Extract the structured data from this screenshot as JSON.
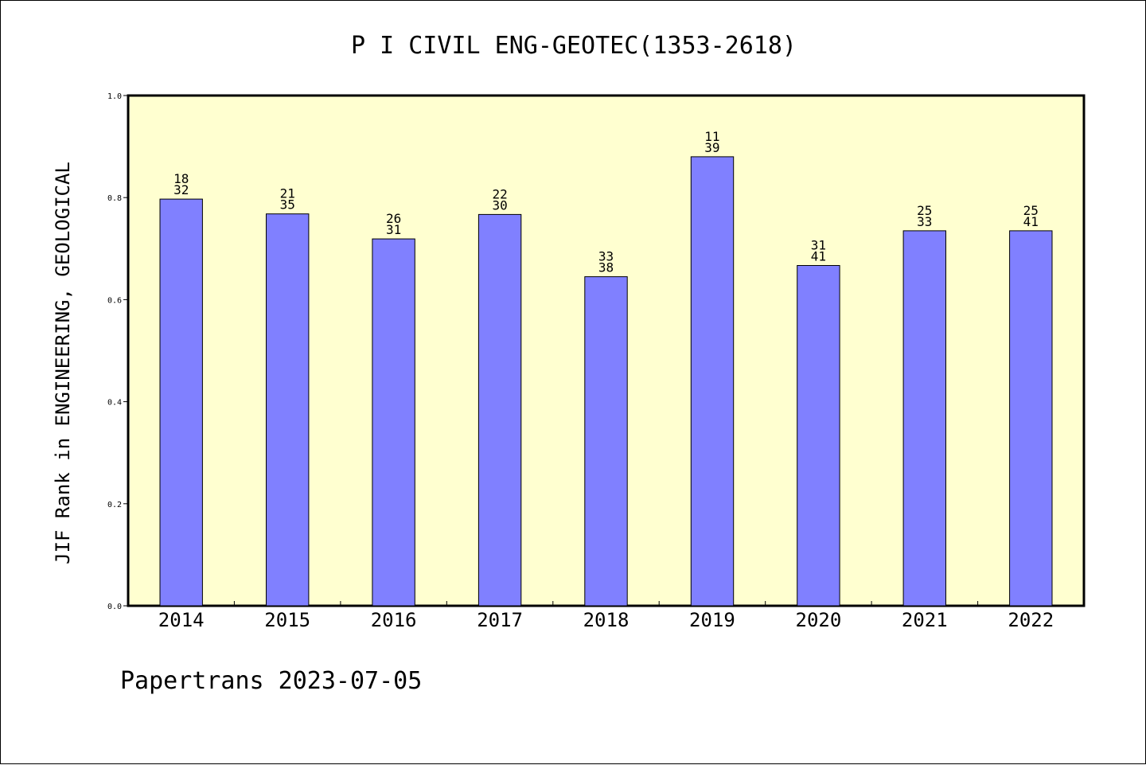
{
  "chart_data": {
    "type": "bar",
    "title": "P I CIVIL ENG-GEOTEC(1353-2618)",
    "ylabel": "JIF Rank in ENGINEERING, GEOLOGICAL",
    "xlabel": "",
    "ylim": [
      0,
      1.0
    ],
    "yticks": [
      "0.0",
      "0.2",
      "0.4",
      "0.6",
      "0.8",
      "1.0"
    ],
    "categories": [
      "2014",
      "2015",
      "2016",
      "2017",
      "2018",
      "2019",
      "2020",
      "2021",
      "2022"
    ],
    "values": [
      0.797,
      0.768,
      0.719,
      0.767,
      0.645,
      0.88,
      0.667,
      0.735,
      0.735
    ],
    "labels_top": [
      "18",
      "21",
      "26",
      "22",
      "33",
      "11",
      "31",
      "25",
      "25"
    ],
    "labels_bottom": [
      "32",
      "35",
      "31",
      "30",
      "38",
      "39",
      "41",
      "33",
      "41"
    ],
    "grid": false,
    "colors": {
      "bar": "#8080ff",
      "plot_background": "#ffffd0",
      "axis": "#000000"
    }
  },
  "footer": {
    "source": "Papertrans 2023-07-05"
  }
}
